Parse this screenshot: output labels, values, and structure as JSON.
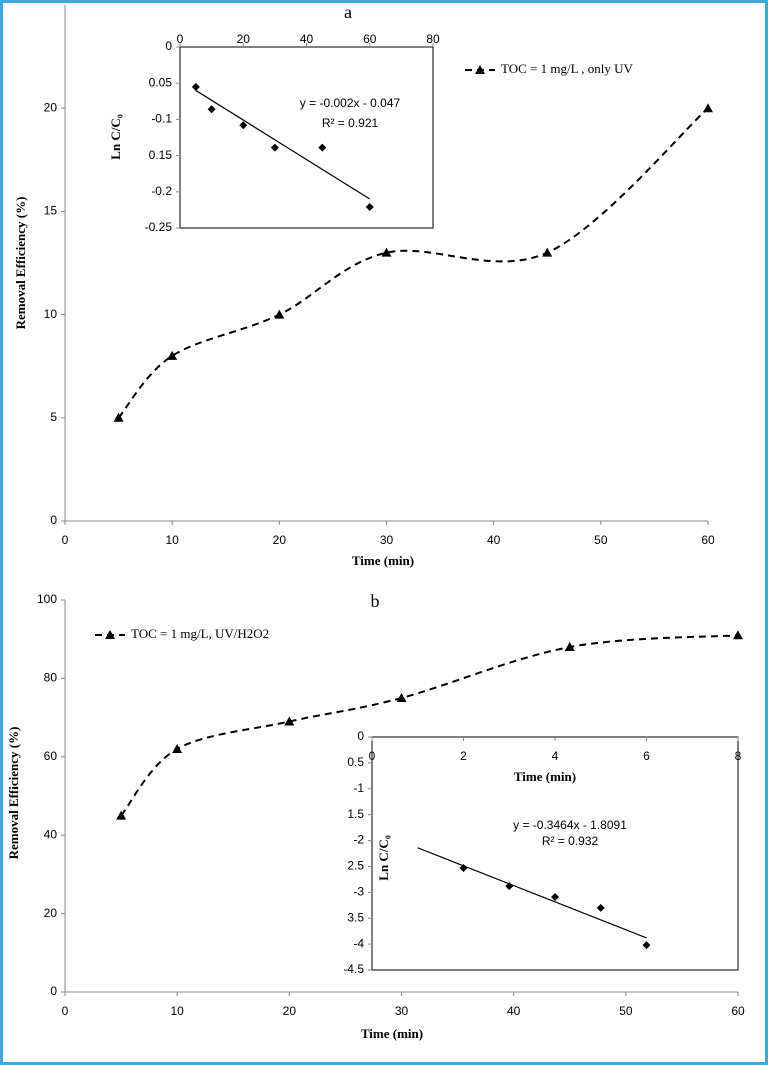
{
  "chart_data": [
    {
      "type": "line",
      "title": "a",
      "x_label": "Time (min)",
      "y_label": "Removal Efficiency (%)",
      "x": [
        5,
        10,
        20,
        30,
        45,
        60
      ],
      "series": [
        {
          "name": "TOC = 1 mg/L , only UV",
          "color": "#000000",
          "values": [
            5,
            8,
            10,
            13,
            13,
            20
          ]
        }
      ],
      "xlim": [
        0,
        60
      ],
      "xticks": [
        0,
        10,
        20,
        30,
        40,
        50,
        60
      ],
      "ylim": [
        0,
        25
      ],
      "yticks": [
        0,
        5,
        10,
        15,
        20
      ],
      "grid": false
    },
    {
      "type": "scatter",
      "y_label": "Ln C/C₀",
      "x": [
        5,
        10,
        20,
        30,
        45,
        60
      ],
      "series": [
        {
          "color": "#000000",
          "values": [
            -0.055,
            -0.086,
            -0.108,
            -0.139,
            -0.139,
            -0.221
          ]
        }
      ],
      "trendline": {
        "x": [
          5,
          60
        ],
        "values": [
          -0.06,
          -0.21
        ]
      },
      "annotations": [
        "y = -0.002x - 0.047",
        "R² = 0.921"
      ],
      "xlim": [
        0,
        80
      ],
      "xticks": [
        0,
        20,
        40,
        60,
        80
      ],
      "ylim": [
        -0.25,
        0
      ],
      "yticks": [
        0,
        {
          "value": -0.05,
          "label": "0.05"
        },
        -0.1,
        {
          "value": -0.15,
          "label": "0.15"
        },
        -0.2,
        -0.25
      ]
    },
    {
      "type": "line",
      "title": "b",
      "x_label": "Time (min)",
      "y_label": "Removal Efficiency (%)",
      "x": [
        5,
        10,
        20,
        30,
        45,
        60
      ],
      "series": [
        {
          "name": "TOC = 1 mg/L, UV/H2O2",
          "color": "#000000",
          "values": [
            45,
            62,
            69,
            75,
            88,
            91
          ]
        }
      ],
      "xlim": [
        0,
        60
      ],
      "xticks": [
        0,
        10,
        20,
        30,
        40,
        50,
        60
      ],
      "ylim": [
        0,
        100
      ],
      "yticks": [
        0,
        20,
        40,
        60,
        80,
        100
      ],
      "grid": false
    },
    {
      "type": "scatter",
      "x_label": "Time (min)",
      "y_label": "Ln C/C₀",
      "x": [
        2,
        3,
        4,
        5,
        6
      ],
      "series": [
        {
          "color": "#000000",
          "values": [
            -2.53,
            -2.88,
            -3.09,
            -3.3,
            -4.02
          ]
        }
      ],
      "trendline": {
        "x": [
          1,
          6
        ],
        "values": [
          -2.14,
          -3.88
        ]
      },
      "annotations": [
        "y = -0.3464x - 1.8091",
        "R² = 0.932"
      ],
      "xlim": [
        0,
        8
      ],
      "xticks": [
        0,
        2,
        4,
        6,
        8
      ],
      "ylim": [
        -4.5,
        0
      ],
      "yticks": [
        0,
        {
          "value": -0.5,
          "label": "0.5"
        },
        -1,
        {
          "value": -1.5,
          "label": "1.5"
        },
        -2,
        {
          "value": -2.5,
          "label": "2.5"
        },
        -3,
        {
          "value": -3.5,
          "label": "3.5"
        },
        -4,
        -4.5
      ]
    }
  ]
}
